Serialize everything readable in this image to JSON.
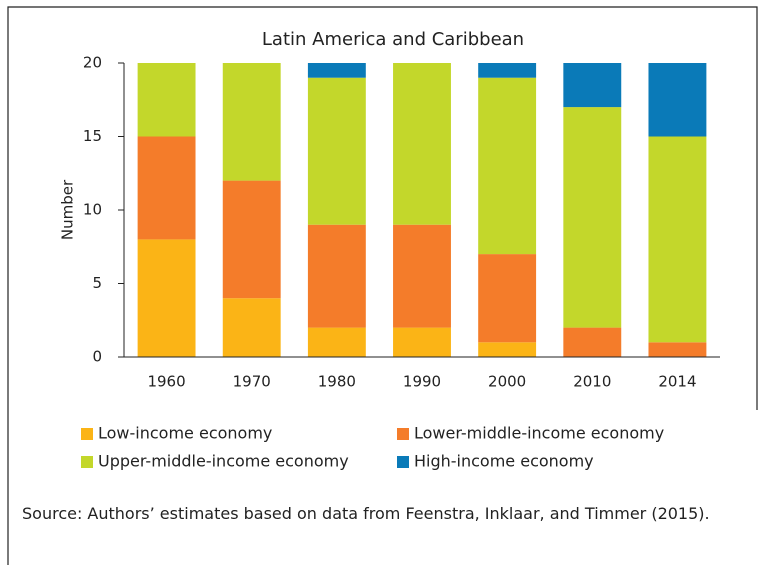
{
  "chart_data": {
    "type": "bar",
    "stacked": true,
    "title": "Latin America and Caribbean",
    "y_label": "Number",
    "categories": [
      "1960",
      "1970",
      "1980",
      "1990",
      "2000",
      "2010",
      "2014"
    ],
    "series": [
      {
        "name": "Low-income economy",
        "color": "#fbb416",
        "values": [
          8,
          4,
          2,
          2,
          1,
          0,
          0
        ]
      },
      {
        "name": "Lower-middle-income economy",
        "color": "#f47c2a",
        "values": [
          7,
          8,
          7,
          7,
          6,
          2,
          1
        ]
      },
      {
        "name": "Upper-middle-income economy",
        "color": "#c3d72b",
        "values": [
          5,
          8,
          10,
          11,
          12,
          15,
          14
        ]
      },
      {
        "name": "High-income economy",
        "color": "#0a7ab8",
        "values": [
          0,
          0,
          1,
          0,
          1,
          3,
          5
        ]
      }
    ],
    "ylim": [
      0,
      20
    ],
    "yticks": [
      0,
      5,
      10,
      15,
      20
    ],
    "grid": false,
    "source": "Source: Authors’ estimates based on data from Feenstra, Inklaar, and Timmer (2015)."
  }
}
